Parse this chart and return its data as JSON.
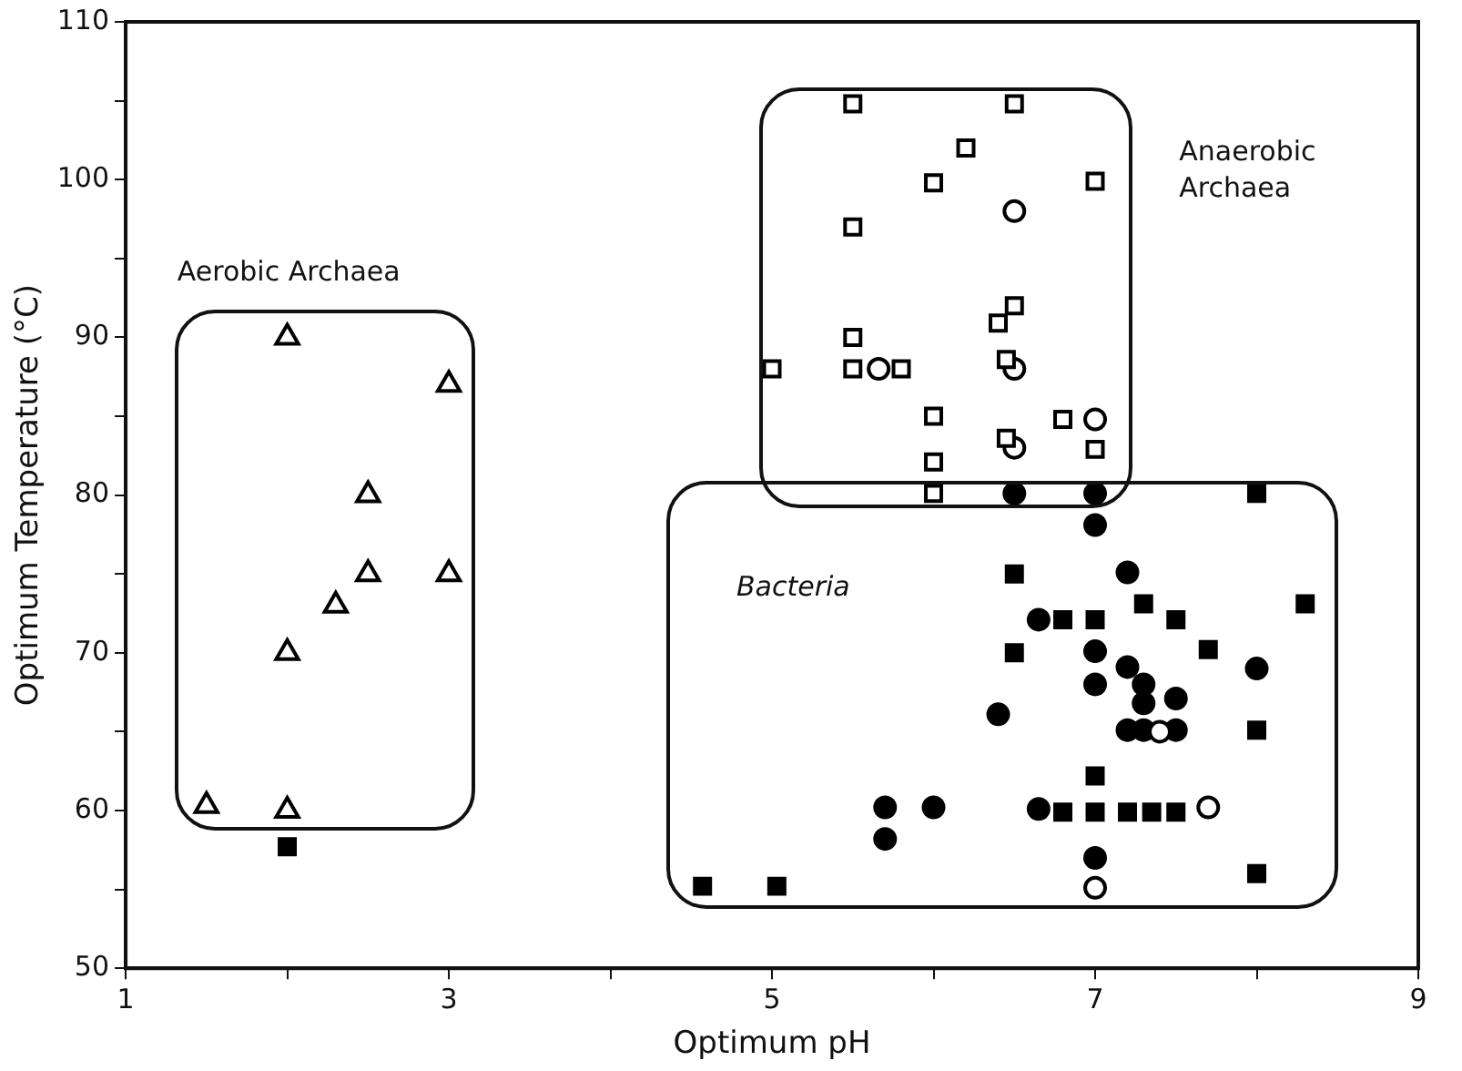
{
  "chart_data": {
    "type": "scatter",
    "xlabel": "Optimum pH",
    "ylabel": "Optimum Temperature (°C)",
    "xlim": [
      1,
      9
    ],
    "xticks": [
      1,
      {
        "value": 2,
        "label": null
      },
      3,
      {
        "value": 4,
        "label": null
      },
      5,
      {
        "value": 6,
        "label": null
      },
      7,
      {
        "value": 8,
        "label": null
      },
      9
    ],
    "ylim": [
      50,
      110
    ],
    "yticks": [
      50,
      {
        "value": 55,
        "label": null
      },
      60,
      {
        "value": 65,
        "label": null
      },
      70,
      {
        "value": 75,
        "label": null
      },
      80,
      {
        "value": 85,
        "label": null
      },
      90,
      {
        "value": 95,
        "label": null
      },
      100,
      {
        "value": 105,
        "label": null
      },
      110
    ],
    "grid": false,
    "legend": false,
    "annotations": [
      "Aerobic Archaea",
      "Anaerobic Archaea",
      "Bacteria"
    ],
    "series": [
      {
        "marker": "triangle",
        "color": "#ffffff",
        "x": [
          1.5,
          2,
          2,
          2,
          2.3,
          2.5,
          2.5,
          3,
          3
        ],
        "values": [
          60.3,
          90,
          70,
          60,
          73,
          80,
          75,
          87,
          75
        ]
      },
      {
        "marker": "square",
        "color": "#ffffff",
        "x": [
          5.5,
          6.5,
          6.2,
          6,
          7,
          5.5,
          5.5,
          6.5,
          6.4,
          5,
          5.5,
          5.8,
          6.45,
          6,
          6.8,
          7,
          6,
          6.45,
          6
        ],
        "values": [
          104.8,
          104.8,
          102,
          99.8,
          99.9,
          97,
          90,
          92,
          90.9,
          88,
          88,
          88,
          88.6,
          85,
          84.8,
          82.9,
          82.1,
          83.6,
          80.1
        ]
      },
      {
        "marker": "circle",
        "color": "#ffffff",
        "x": [
          6.5,
          5.66,
          6.5,
          7,
          6.5,
          7.4,
          7.7,
          7
        ],
        "values": [
          98,
          88,
          88,
          84.8,
          83,
          65,
          60.2,
          55.1
        ]
      },
      {
        "marker": "circle",
        "color": "#000000",
        "x": [
          6.5,
          7,
          7,
          7.2,
          6.65,
          7,
          7.2,
          8,
          7,
          7.3,
          7.3,
          7.5,
          6.4,
          7.2,
          7.3,
          7.5,
          5.7,
          6,
          6.65,
          5.7,
          7
        ],
        "values": [
          80.1,
          80.1,
          78.1,
          75.1,
          72.1,
          70.1,
          69.1,
          69,
          68,
          68,
          66.8,
          67.1,
          66.1,
          65.1,
          65.1,
          65.1,
          60.2,
          60.2,
          60.1,
          58.2,
          57
        ]
      },
      {
        "marker": "square",
        "color": "#000000",
        "x": [
          2,
          4.57,
          5.03,
          6.5,
          6.5,
          6.8,
          7,
          7.3,
          7.5,
          7.7,
          8,
          8.3,
          8,
          7,
          6.8,
          7,
          7.2,
          7.35,
          7.5,
          8
        ],
        "values": [
          57.7,
          55.2,
          55.2,
          75,
          70,
          72.1,
          72.1,
          73.1,
          72.1,
          70.2,
          80.1,
          73.1,
          65.1,
          62.2,
          59.9,
          59.9,
          59.9,
          59.9,
          59.9,
          56
        ]
      }
    ]
  }
}
